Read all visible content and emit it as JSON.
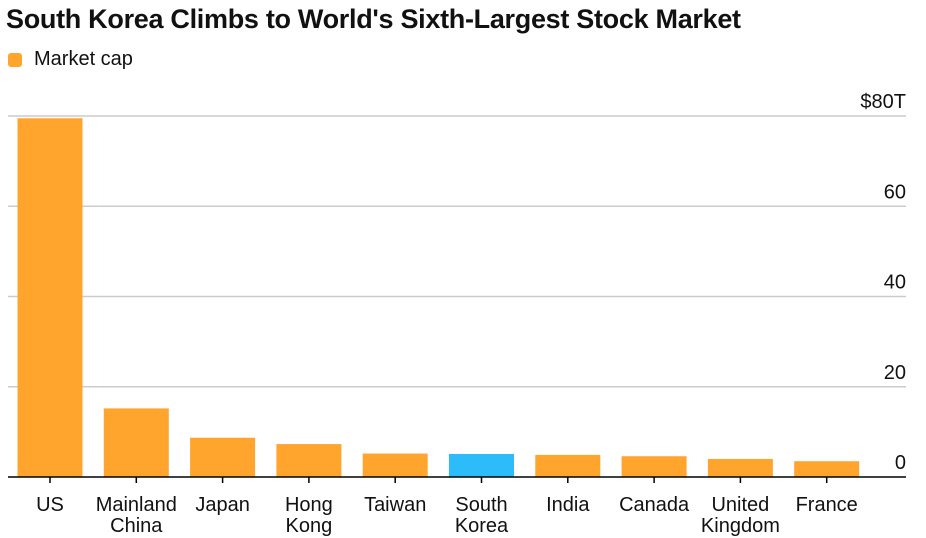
{
  "chart_data": {
    "type": "bar",
    "title": "South Korea Climbs to World's Sixth-Largest Stock Market",
    "legend": {
      "placement": "top-left",
      "entries": [
        {
          "label": "Market cap",
          "color": "#ffa52e"
        }
      ]
    },
    "categories": [
      [
        "US"
      ],
      [
        "Mainland",
        "China"
      ],
      [
        "Japan"
      ],
      [
        "Hong",
        "Kong"
      ],
      [
        "Taiwan"
      ],
      [
        "South",
        "Korea"
      ],
      [
        "India"
      ],
      [
        "Canada"
      ],
      [
        "United",
        "Kingdom"
      ],
      [
        "France"
      ]
    ],
    "series": [
      {
        "name": "Market cap",
        "values": [
          79.5,
          15.2,
          8.7,
          7.3,
          5.2,
          5.1,
          4.9,
          4.6,
          4.0,
          3.5
        ]
      }
    ],
    "highlight_index": 5,
    "colors": {
      "bar": "#ffa52e",
      "highlight": "#2bbcf9",
      "grid": "#cccccc",
      "axis": "#000000"
    },
    "ylim": [
      0,
      80
    ],
    "yticks": [
      {
        "value": 0,
        "label": "0"
      },
      {
        "value": 20,
        "label": "20"
      },
      {
        "value": 40,
        "label": "40"
      },
      {
        "value": 60,
        "label": "60"
      },
      {
        "value": 80,
        "label": "$80T"
      }
    ],
    "grid": true,
    "y_axis_side": "right",
    "xlabel": "",
    "ylabel": ""
  }
}
